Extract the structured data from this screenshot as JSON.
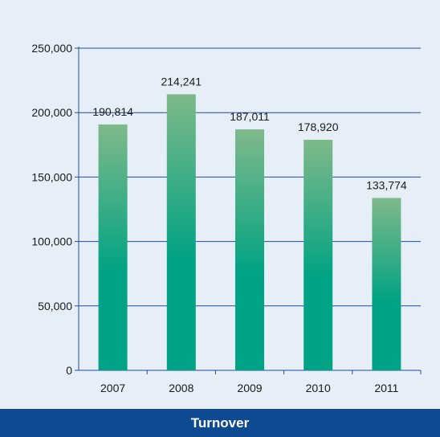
{
  "colors": {
    "background": "#e6eff8",
    "gridline": "#1f4e9c",
    "axis": "#1f4e9c",
    "bar_top": "#7fb98a",
    "bar_bottom": "#00a383",
    "footer_band": "#0d4a92",
    "footer_text": "#ffffff"
  },
  "chart_data": {
    "type": "bar",
    "categories": [
      "2007",
      "2008",
      "2009",
      "2010",
      "2011"
    ],
    "values": [
      190814,
      214241,
      187011,
      178920,
      133774
    ],
    "data_labels": [
      "190,814",
      "214,241",
      "187,011",
      "178,920",
      "133,774"
    ],
    "ylim": [
      0,
      250000
    ],
    "yticks": [
      0,
      50000,
      100000,
      150000,
      200000,
      250000
    ],
    "ytick_labels": [
      "0",
      "50,000",
      "100,000",
      "150,000",
      "200,000",
      "250,000"
    ],
    "grid": true,
    "title": "Turnover",
    "legend": "none"
  }
}
